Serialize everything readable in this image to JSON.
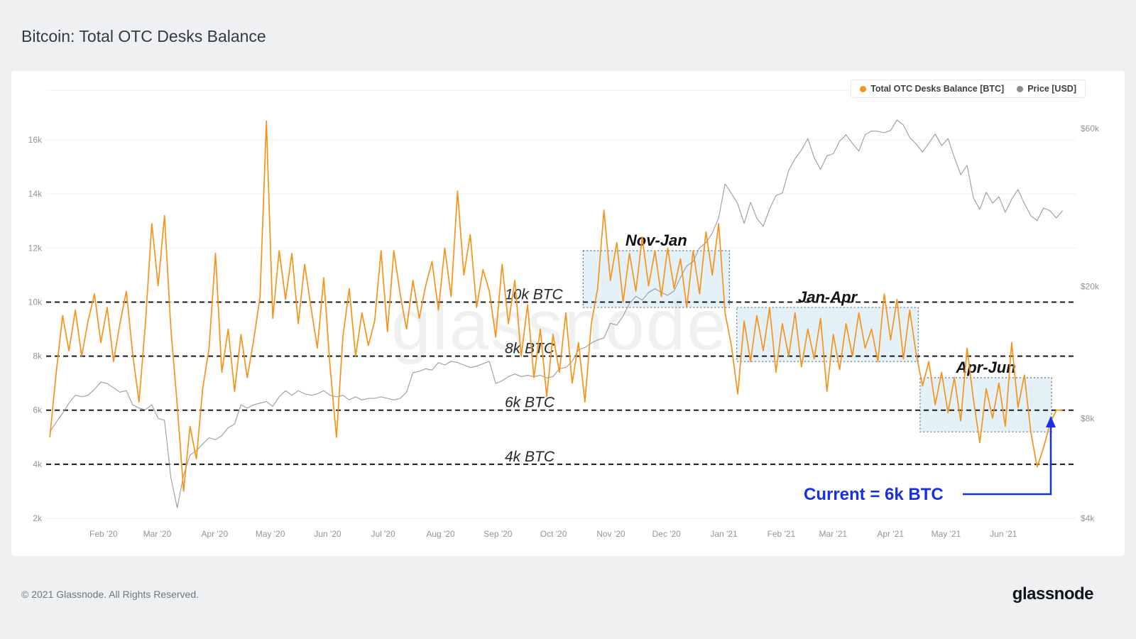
{
  "page": {
    "title": "Bitcoin: Total OTC Desks Balance",
    "watermark": "glassnode",
    "footer_copyright": "© 2021 Glassnode. All Rights Reserved.",
    "footer_logo": "glassnode"
  },
  "legend": {
    "items": [
      {
        "label": "Total OTC Desks Balance [BTC]",
        "color": "#f7931a"
      },
      {
        "label": "Price [USD]",
        "color": "#8e8e8e"
      }
    ]
  },
  "chart_data": {
    "type": "line",
    "title": "Bitcoin: Total OTC Desks Balance",
    "x_unit": "days since 2020-01-01",
    "sample_start_day": 2,
    "sample_interval_days": 3.44,
    "x_ticks": [
      {
        "day": 31,
        "label": "Feb '20"
      },
      {
        "day": 60,
        "label": "Mar '20"
      },
      {
        "day": 91,
        "label": "Apr '20"
      },
      {
        "day": 121,
        "label": "May '20"
      },
      {
        "day": 152,
        "label": "Jun '20"
      },
      {
        "day": 182,
        "label": "Jul '20"
      },
      {
        "day": 213,
        "label": "Aug '20"
      },
      {
        "day": 244,
        "label": "Sep '20"
      },
      {
        "day": 274,
        "label": "Oct '20"
      },
      {
        "day": 305,
        "label": "Nov '20"
      },
      {
        "day": 335,
        "label": "Dec '20"
      },
      {
        "day": 366,
        "label": "Jan '21"
      },
      {
        "day": 397,
        "label": "Feb '21"
      },
      {
        "day": 425,
        "label": "Mar '21"
      },
      {
        "day": 456,
        "label": "Apr '21"
      },
      {
        "day": 486,
        "label": "May '21"
      },
      {
        "day": 517,
        "label": "Jun '21"
      }
    ],
    "left_axis": {
      "label": "Total OTC Desks Balance [BTC]",
      "unit": "k BTC",
      "scale": "linear",
      "range": [
        2,
        17.8
      ],
      "ticks": [
        {
          "value": 2,
          "label": "2k"
        },
        {
          "value": 4,
          "label": "4k"
        },
        {
          "value": 6,
          "label": "6k"
        },
        {
          "value": 8,
          "label": "8k"
        },
        {
          "value": 10,
          "label": "10k"
        },
        {
          "value": 12,
          "label": "12k"
        },
        {
          "value": 14,
          "label": "14k"
        },
        {
          "value": 16,
          "label": "16k"
        }
      ]
    },
    "right_axis": {
      "label": "Price [USD]",
      "unit": "k USD",
      "scale": "log",
      "range": [
        4,
        66
      ],
      "ticks": [
        {
          "value": 4,
          "label": "$4k"
        },
        {
          "value": 8,
          "label": "$8k"
        },
        {
          "value": 20,
          "label": "$20k"
        },
        {
          "value": 60,
          "label": "$60k"
        }
      ]
    },
    "series": [
      {
        "name": "Total OTC Desks Balance [BTC]",
        "color": "#f7931a",
        "axis": "left",
        "unit": "k BTC",
        "values": [
          5.0,
          7.4,
          9.5,
          8.2,
          9.7,
          8.0,
          9.3,
          10.3,
          8.5,
          9.8,
          7.8,
          9.2,
          10.4,
          8.1,
          6.3,
          9.2,
          12.9,
          10.6,
          13.2,
          9.0,
          6.2,
          3.0,
          5.4,
          4.2,
          6.8,
          8.3,
          11.8,
          7.4,
          9.0,
          6.7,
          8.8,
          7.2,
          8.6,
          10.2,
          16.7,
          9.4,
          11.9,
          10.1,
          11.8,
          9.2,
          11.4,
          9.8,
          8.3,
          10.9,
          7.6,
          5.0,
          8.7,
          10.5,
          8.0,
          9.6,
          8.4,
          9.3,
          11.9,
          8.9,
          11.9,
          10.3,
          9.0,
          10.8,
          9.4,
          10.6,
          11.5,
          9.7,
          12.0,
          10.2,
          14.1,
          11.0,
          12.5,
          9.8,
          11.2,
          10.4,
          8.7,
          11.4,
          9.2,
          10.8,
          8.0,
          9.9,
          7.2,
          9.0,
          6.5,
          8.8,
          7.4,
          9.6,
          7.0,
          8.5,
          6.3,
          9.2,
          10.5,
          13.4,
          10.8,
          12.2,
          10.0,
          11.8,
          10.4,
          12.4,
          10.6,
          11.9,
          10.2,
          12.0,
          10.5,
          11.6,
          9.8,
          11.9,
          10.3,
          12.6,
          11.0,
          12.9,
          9.6,
          8.4,
          6.6,
          9.3,
          7.8,
          9.5,
          8.2,
          9.8,
          7.4,
          9.2,
          8.0,
          9.6,
          7.6,
          9.0,
          7.9,
          9.4,
          6.7,
          8.8,
          7.5,
          9.2,
          8.0,
          9.6,
          8.3,
          9.0,
          7.8,
          10.3,
          8.6,
          10.1,
          7.9,
          9.7,
          8.1,
          6.9,
          7.8,
          6.2,
          7.4,
          5.9,
          7.2,
          5.6,
          8.3,
          6.4,
          4.8,
          6.8,
          5.7,
          7.0,
          5.4,
          8.5,
          6.1,
          7.3,
          5.2,
          3.9,
          4.6,
          5.5,
          6.0,
          6.0
        ]
      },
      {
        "name": "Price [USD]",
        "color": "#9b9b9b",
        "axis": "right",
        "unit": "k USD",
        "values": [
          7.3,
          7.8,
          8.3,
          8.9,
          9.4,
          9.3,
          9.4,
          9.8,
          10.3,
          10.2,
          9.9,
          9.6,
          9.7,
          8.8,
          8.6,
          8.5,
          8.8,
          8.0,
          7.9,
          5.3,
          4.3,
          5.4,
          6.2,
          6.4,
          6.7,
          7.0,
          6.9,
          7.1,
          7.5,
          7.7,
          8.8,
          8.6,
          8.8,
          8.9,
          9.0,
          8.7,
          9.3,
          9.7,
          9.4,
          9.7,
          9.5,
          9.4,
          9.5,
          9.7,
          9.4,
          9.3,
          9.4,
          9.1,
          9.3,
          9.1,
          9.2,
          9.2,
          9.3,
          9.2,
          9.1,
          9.2,
          9.6,
          11.0,
          11.1,
          11.3,
          11.2,
          11.8,
          11.6,
          11.9,
          11.8,
          11.6,
          11.4,
          11.5,
          11.7,
          11.9,
          10.2,
          10.4,
          10.7,
          10.9,
          10.7,
          10.8,
          10.7,
          10.8,
          10.6,
          10.7,
          11.3,
          11.4,
          11.9,
          12.9,
          13.1,
          13.5,
          13.8,
          14.0,
          15.5,
          15.3,
          16.3,
          17.8,
          18.7,
          18.2,
          19.2,
          19.7,
          19.2,
          18.8,
          19.4,
          21.3,
          23.1,
          23.8,
          26.2,
          27.1,
          29.0,
          32.2,
          40.8,
          38.2,
          35.5,
          31.0,
          35.9,
          32.1,
          30.4,
          34.3,
          37.6,
          38.3,
          44.8,
          48.6,
          51.6,
          55.9,
          48.9,
          45.1,
          49.6,
          50.3,
          54.9,
          57.4,
          54.1,
          51.2,
          57.4,
          58.9,
          58.8,
          58.2,
          59.1,
          63.6,
          61.4,
          56.3,
          53.8,
          50.9,
          54.0,
          57.7,
          53.2,
          55.9,
          49.1,
          43.5,
          46.4,
          37.0,
          34.2,
          38.5,
          35.7,
          37.3,
          33.5,
          36.7,
          39.2,
          35.6,
          32.7,
          31.6,
          34.5,
          33.9,
          32.2,
          33.9
        ]
      }
    ],
    "reference_lines": [
      {
        "value": 10,
        "label": "10k BTC"
      },
      {
        "value": 8,
        "label": "8k BTC"
      },
      {
        "value": 6,
        "label": "6k BTC"
      },
      {
        "value": 4,
        "label": "4k BTC"
      }
    ],
    "range_boxes": [
      {
        "label": "Nov-Jan",
        "day_start": 290,
        "day_end": 369,
        "value_low": 9.8,
        "value_high": 11.9
      },
      {
        "label": "Jan-Apr",
        "day_start": 373,
        "day_end": 471,
        "value_low": 7.8,
        "value_high": 9.8
      },
      {
        "label": "Apr-Jun",
        "day_start": 472,
        "day_end": 543,
        "value_low": 5.2,
        "value_high": 7.2
      }
    ],
    "annotation": {
      "text": "Current = 6k BTC",
      "color": "#1730e5",
      "points_to_value": 6
    },
    "style": {
      "grid_color": "#ededef",
      "reference_line_color": "#1a1b1d",
      "box_fill": "#d2e8f4",
      "box_border": "#5b6e79"
    },
    "legend_position": "top-right",
    "grid": "horizontal-only"
  }
}
